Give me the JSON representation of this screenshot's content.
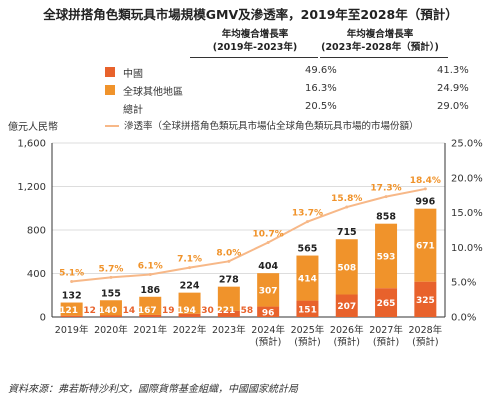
{
  "title": "全球拼搭角色類玩具市場規模GMV及滲透率，2019年至2028年（預計）",
  "legend_table": {
    "col1_header_line1": "年均複合增長率",
    "col1_header_line2": "(2019年-2023年)",
    "col2_header_line1": "年均複合增長率",
    "col2_header_line2": "(2023年-2028年（預計）)",
    "rows": [
      {
        "name": "中國",
        "v1": "49.6%",
        "v2": "41.3%",
        "color": "#e8622c"
      },
      {
        "name": "全球其他地區",
        "v1": "16.3%",
        "v2": "24.9%",
        "color": "#f0932b"
      },
      {
        "name": "總計",
        "v1": "20.5%",
        "v2": "29.0%",
        "color": ""
      }
    ],
    "rate_label": "滲透率（全球拼搭角色類玩具市場佔全球角色類玩具市場的市場份額）"
  },
  "source": "資料來源：弗若斯特沙利文，國際貨幣基金組織，中國國家統計局",
  "chart_data": {
    "type": "bar",
    "stacked": true,
    "ylabel": "億元人民幣",
    "ylim": [
      0,
      1600
    ],
    "yticks": [
      "0",
      "400",
      "800",
      "1,200",
      "1,600"
    ],
    "y2lim": [
      0,
      25
    ],
    "y2ticks": [
      "0.0%",
      "5.0%",
      "10.0%",
      "15.0%",
      "20.0%",
      "25.0%"
    ],
    "categories": [
      [
        "2019年"
      ],
      [
        "2020年"
      ],
      [
        "2021年"
      ],
      [
        "2022年"
      ],
      [
        "2023年"
      ],
      [
        "2024年",
        "(預計)"
      ],
      [
        "2025年",
        "(預計)"
      ],
      [
        "2026年",
        "(預計)"
      ],
      [
        "2027年",
        "(預計)"
      ],
      [
        "2028年",
        "(預計)"
      ]
    ],
    "series": [
      {
        "name": "中國",
        "color": "#e8622c",
        "values": [
          12,
          14,
          19,
          30,
          58,
          96,
          151,
          207,
          265,
          325
        ]
      },
      {
        "name": "全球其他地區",
        "color": "#f0932b",
        "values": [
          121,
          140,
          167,
          194,
          221,
          307,
          414,
          508,
          593,
          671
        ]
      }
    ],
    "totals": [
      132,
      155,
      186,
      224,
      278,
      404,
      565,
      715,
      858,
      996
    ],
    "rate": {
      "name": "滲透率",
      "color": "#f7b888",
      "values": [
        5.1,
        5.7,
        6.1,
        7.1,
        8.0,
        10.7,
        13.7,
        15.8,
        17.3,
        18.4
      ],
      "labels": [
        "5.1%",
        "5.7%",
        "6.1%",
        "7.1%",
        "8.0%",
        "10.7%",
        "13.7%",
        "15.8%",
        "17.3%",
        "18.4%"
      ]
    }
  }
}
